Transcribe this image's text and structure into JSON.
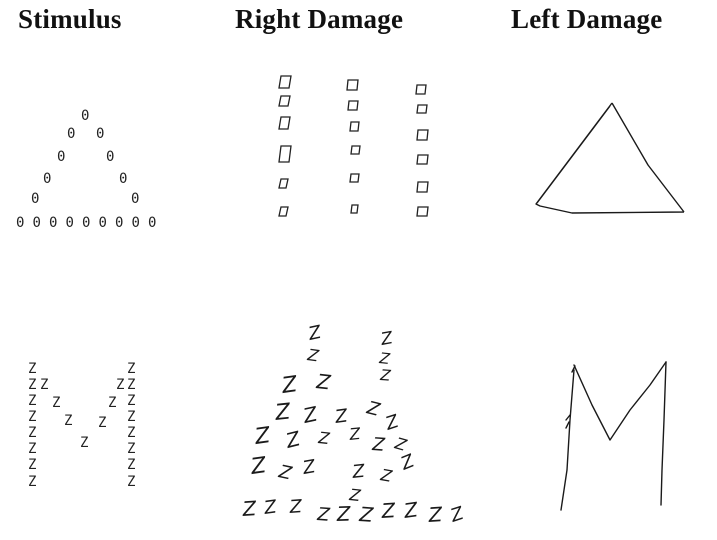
{
  "headers": {
    "stimulus": "Stimulus",
    "right_damage": "Right Damage",
    "left_damage": "Left Damage"
  },
  "stimulus_glyphs": {
    "triangle_element": "0",
    "m_element": "Z"
  },
  "colors": {
    "ink": "#1a1a1a",
    "background": "#ffffff"
  }
}
